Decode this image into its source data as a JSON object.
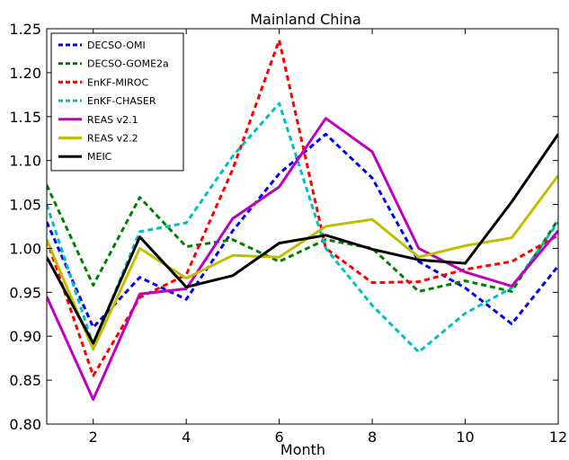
{
  "chart_data": {
    "type": "line",
    "title": "Mainland China",
    "xlabel": "Month",
    "ylabel": "",
    "xlim": [
      1,
      12
    ],
    "ylim": [
      0.8,
      1.25
    ],
    "xticks": [
      2,
      4,
      6,
      8,
      10,
      12
    ],
    "yticks": [
      0.8,
      0.85,
      0.9,
      0.95,
      1.0,
      1.05,
      1.1,
      1.15,
      1.2,
      1.25
    ],
    "ytick_labels": [
      "0.80",
      "0.85",
      "0.90",
      "0.95",
      "1.00",
      "1.05",
      "1.10",
      "1.15",
      "1.20",
      "1.25"
    ],
    "grid": false,
    "legend_position": "top-left",
    "x": [
      1,
      2,
      3,
      4,
      5,
      6,
      7,
      8,
      9,
      10,
      11,
      12
    ],
    "series": [
      {
        "name": "DECSO-OMI",
        "color": "#0000ff",
        "dash": "dashed",
        "values": [
          1.03,
          0.91,
          0.967,
          0.942,
          1.02,
          1.085,
          1.13,
          1.08,
          0.985,
          0.955,
          0.914,
          0.98
        ]
      },
      {
        "name": "DECSO-GOME2a",
        "color": "#008000",
        "dash": "dashed",
        "values": [
          1.072,
          0.958,
          1.058,
          1.002,
          1.01,
          0.985,
          1.01,
          1.0,
          0.951,
          0.963,
          0.951,
          1.033
        ]
      },
      {
        "name": "EnKF-MIROC",
        "color": "#ff0000",
        "dash": "dashed",
        "values": [
          1.01,
          0.855,
          0.944,
          0.97,
          1.09,
          1.237,
          1.0,
          0.961,
          0.962,
          0.976,
          0.985,
          1.015
        ]
      },
      {
        "name": "EnKF-CHASER",
        "color": "#00bfbf",
        "dash": "dashed",
        "values": [
          1.05,
          0.89,
          1.019,
          1.029,
          1.105,
          1.165,
          1.0,
          0.935,
          0.882,
          0.926,
          0.955,
          1.03
        ]
      },
      {
        "name": "REAS v2.1",
        "color": "#bf00bf",
        "dash": "solid",
        "values": [
          0.945,
          0.828,
          0.948,
          0.954,
          1.034,
          1.07,
          1.148,
          1.11,
          1.0,
          0.973,
          0.957,
          1.02
        ]
      },
      {
        "name": "REAS v2.2",
        "color": "#bfbf00",
        "dash": "solid",
        "values": [
          1.01,
          0.885,
          1.0,
          0.966,
          0.992,
          0.99,
          1.025,
          1.033,
          0.99,
          1.003,
          1.012,
          1.083
        ]
      },
      {
        "name": "MEIC",
        "color": "#000000",
        "dash": "solid",
        "values": [
          0.99,
          0.892,
          1.013,
          0.956,
          0.969,
          1.006,
          1.015,
          0.999,
          0.987,
          0.983,
          1.053,
          1.13
        ]
      }
    ]
  }
}
